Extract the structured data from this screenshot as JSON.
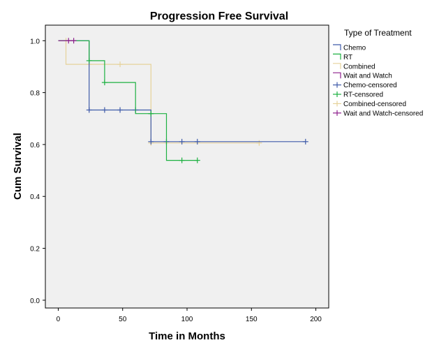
{
  "chart_data": {
    "type": "line",
    "subtype": "kaplan-meier step",
    "title": "Progression Free Survival",
    "xlabel": "Time in Months",
    "ylabel": "Cum Survival",
    "xlim": [
      -10,
      210
    ],
    "ylim": [
      -0.03,
      1.06
    ],
    "x_ticks": [
      0,
      50,
      100,
      150,
      200
    ],
    "y_ticks": [
      0.0,
      0.2,
      0.4,
      0.6,
      0.8,
      1.0
    ],
    "y_tick_labels": [
      "0.0",
      "0.2",
      "0.4",
      "0.6",
      "0.8",
      "1.0"
    ],
    "grid": false,
    "plot_background": "#f0f0f0",
    "legend_title": "Type of Treatment",
    "legend_position": "right",
    "series": [
      {
        "name": "Chemo",
        "color": "#3f5ba9",
        "steps": [
          [
            0,
            1.0
          ],
          [
            24,
            1.0
          ],
          [
            24,
            0.733
          ],
          [
            72,
            0.733
          ],
          [
            72,
            0.611
          ],
          [
            192,
            0.611
          ]
        ],
        "censored_name": "Chemo-censored",
        "censored": [
          [
            24,
            0.733
          ],
          [
            36,
            0.733
          ],
          [
            48,
            0.733
          ],
          [
            60,
            0.733
          ],
          [
            72,
            0.611
          ],
          [
            84,
            0.611
          ],
          [
            96,
            0.611
          ],
          [
            108,
            0.611
          ],
          [
            192,
            0.611
          ]
        ]
      },
      {
        "name": "RT",
        "color": "#1db141",
        "steps": [
          [
            0,
            1.0
          ],
          [
            24,
            1.0
          ],
          [
            24,
            0.923
          ],
          [
            36,
            0.923
          ],
          [
            36,
            0.839
          ],
          [
            60,
            0.839
          ],
          [
            60,
            0.719
          ],
          [
            84,
            0.719
          ],
          [
            84,
            0.539
          ],
          [
            108,
            0.539
          ]
        ],
        "censored_name": "RT-censored",
        "censored": [
          [
            24,
            0.923
          ],
          [
            36,
            0.839
          ],
          [
            72,
            0.719
          ],
          [
            96,
            0.539
          ],
          [
            108,
            0.539
          ]
        ]
      },
      {
        "name": "Combined",
        "color": "#e6d29a",
        "steps": [
          [
            0,
            1.0
          ],
          [
            6,
            1.0
          ],
          [
            6,
            0.909
          ],
          [
            72,
            0.909
          ],
          [
            72,
            0.606
          ],
          [
            156,
            0.606
          ]
        ],
        "censored_name": "Combined-censored",
        "censored": [
          [
            6,
            1.0
          ],
          [
            24,
            0.909
          ],
          [
            48,
            0.909
          ],
          [
            72,
            0.606
          ],
          [
            156,
            0.606
          ]
        ]
      },
      {
        "name": "Wait and Watch",
        "color": "#8e1e8c",
        "steps": [
          [
            0,
            1.0
          ],
          [
            12,
            1.0
          ]
        ],
        "censored_name": "Wait and Watch-censored",
        "censored": [
          [
            8,
            1.0
          ],
          [
            12,
            1.0
          ]
        ]
      }
    ]
  }
}
